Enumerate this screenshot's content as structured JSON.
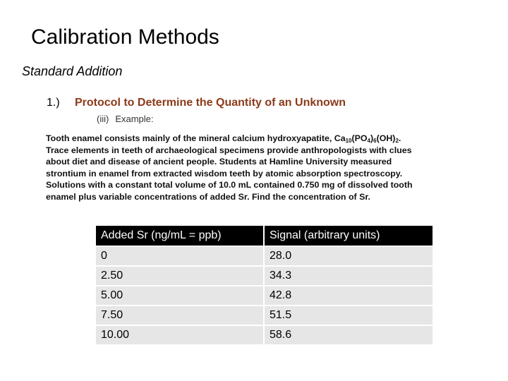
{
  "slide": {
    "title": "Calibration Methods",
    "subtitle": "Standard Addition",
    "item": {
      "number": "1.)",
      "heading": "Protocol to Determine the Quantity of an Unknown"
    },
    "sub_item": {
      "number": "(iii)",
      "label": "Example:"
    },
    "paragraph": {
      "line1_a": "Tooth enamel consists mainly of the mineral calcium hydroxyapatite, Ca",
      "line1_sub1": "10",
      "line1_b": "(PO",
      "line1_sub2": "4",
      "line1_c": ")",
      "line1_sub3": "6",
      "line1_d": "(OH)",
      "line1_sub4": "2",
      "line1_e": ".",
      "line2": "Trace elements in teeth of archaeological specimens provide anthropologists with clues",
      "line3": "about diet and disease of ancient people. Students at Hamline University measured",
      "line4": "strontium in enamel from extracted wisdom teeth by atomic absorption spectroscopy.",
      "line5": "Solutions with a constant total volume of 10.0 mL contained 0.750 mg of dissolved tooth",
      "line6": "enamel plus variable concentrations of added Sr. Find the concentration of Sr."
    },
    "table": {
      "headers": [
        "Added Sr (ng/mL = ppb)",
        "Signal (arbitrary units)"
      ],
      "rows": [
        [
          "0",
          "28.0"
        ],
        [
          "2.50",
          "34.3"
        ],
        [
          "5.00",
          "42.8"
        ],
        [
          "7.50",
          "51.5"
        ],
        [
          "10.00",
          "58.6"
        ]
      ]
    }
  }
}
